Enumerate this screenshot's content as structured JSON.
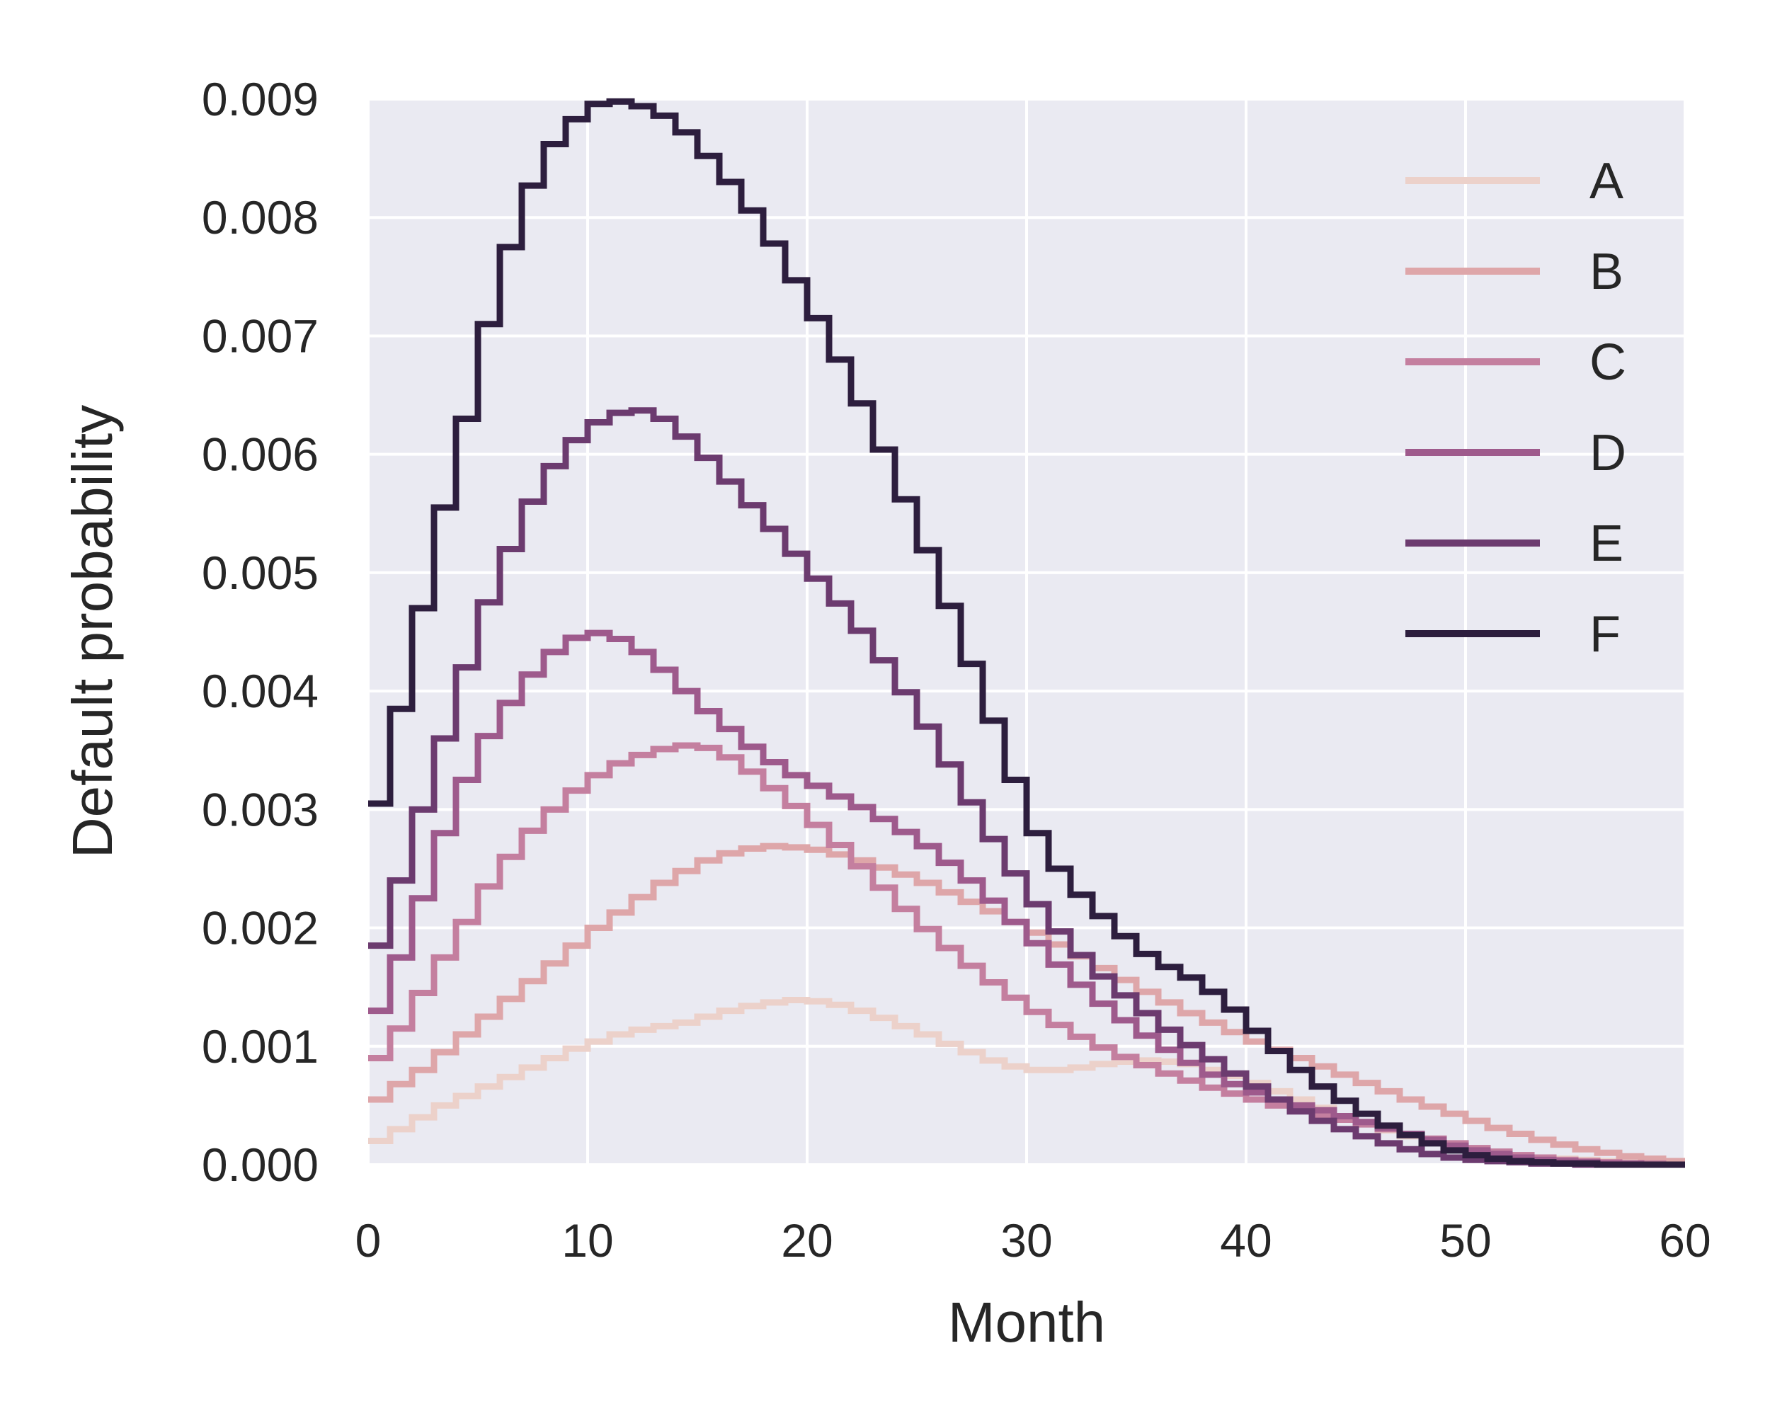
{
  "chart_data": {
    "type": "line",
    "title": "",
    "xlabel": "Month",
    "ylabel": "Default probability",
    "xlim": [
      0,
      60
    ],
    "ylim": [
      0,
      0.009
    ],
    "grid": true,
    "legend_position": "top-right",
    "x_ticks": [
      "0",
      "10",
      "20",
      "30",
      "40",
      "50",
      "60"
    ],
    "y_ticks": [
      "0.000",
      "0.001",
      "0.002",
      "0.003",
      "0.004",
      "0.005",
      "0.006",
      "0.007",
      "0.008",
      "0.009"
    ],
    "x": [
      0,
      1,
      2,
      3,
      4,
      5,
      6,
      7,
      8,
      9,
      10,
      11,
      12,
      13,
      14,
      15,
      16,
      17,
      18,
      19,
      20,
      21,
      22,
      23,
      24,
      25,
      26,
      27,
      28,
      29,
      30,
      31,
      32,
      33,
      34,
      35,
      36,
      37,
      38,
      39,
      40,
      41,
      42,
      43,
      44,
      45,
      46,
      47,
      48,
      49,
      50,
      51,
      52,
      53,
      54,
      55,
      56,
      57,
      58,
      59
    ],
    "series": [
      {
        "name": "A",
        "color": "#ecd1ca",
        "values": [
          0.0002,
          0.0003,
          0.0004,
          0.0005,
          0.00058,
          0.00066,
          0.00074,
          0.00082,
          0.0009,
          0.00098,
          0.00104,
          0.0011,
          0.00114,
          0.00117,
          0.0012,
          0.00125,
          0.0013,
          0.00134,
          0.00137,
          0.00139,
          0.00138,
          0.00135,
          0.0013,
          0.00124,
          0.00117,
          0.0011,
          0.00102,
          0.00095,
          0.00088,
          0.00083,
          0.0008,
          0.0008,
          0.00082,
          0.00085,
          0.00087,
          0.00088,
          0.00087,
          0.00085,
          0.0008,
          0.00075,
          0.00069,
          0.00062,
          0.00055,
          0.00048,
          0.00041,
          0.00035,
          0.00029,
          0.00024,
          0.0002,
          0.00016,
          0.00013,
          0.0001,
          8e-05,
          6e-05,
          5e-05,
          4e-05,
          3e-05,
          2e-05,
          2e-05,
          1e-05
        ]
      },
      {
        "name": "B",
        "color": "#dea6a9",
        "values": [
          0.00055,
          0.00068,
          0.0008,
          0.00095,
          0.0011,
          0.00125,
          0.0014,
          0.00155,
          0.0017,
          0.00185,
          0.002,
          0.00213,
          0.00226,
          0.00238,
          0.00248,
          0.00257,
          0.00263,
          0.00267,
          0.00269,
          0.00268,
          0.00266,
          0.00262,
          0.00257,
          0.00251,
          0.00245,
          0.00238,
          0.0023,
          0.00222,
          0.00214,
          0.00205,
          0.00196,
          0.00186,
          0.00176,
          0.00166,
          0.00156,
          0.00146,
          0.00137,
          0.00128,
          0.0012,
          0.00112,
          0.00104,
          0.00097,
          0.0009,
          0.00083,
          0.00076,
          0.00069,
          0.00062,
          0.00055,
          0.00049,
          0.00043,
          0.00037,
          0.00031,
          0.00026,
          0.00021,
          0.00017,
          0.00013,
          0.0001,
          7e-05,
          5e-05,
          3e-05
        ]
      },
      {
        "name": "C",
        "color": "#c47f9f",
        "values": [
          0.0009,
          0.00115,
          0.00145,
          0.00175,
          0.00205,
          0.00235,
          0.0026,
          0.00282,
          0.003,
          0.00316,
          0.00329,
          0.00339,
          0.00346,
          0.00351,
          0.00354,
          0.00352,
          0.00344,
          0.00332,
          0.00318,
          0.00303,
          0.00287,
          0.0027,
          0.00252,
          0.00234,
          0.00216,
          0.00199,
          0.00183,
          0.00168,
          0.00154,
          0.00141,
          0.00129,
          0.00118,
          0.00108,
          0.00099,
          0.00091,
          0.00084,
          0.00077,
          0.00071,
          0.00065,
          0.0006,
          0.00055,
          0.0005,
          0.00046,
          0.00042,
          0.00038,
          0.00034,
          0.0003,
          0.00026,
          0.00022,
          0.00018,
          0.00014,
          0.00011,
          8e-05,
          6e-05,
          4e-05,
          3e-05,
          2e-05,
          1e-05,
          1e-05,
          0.0
        ]
      },
      {
        "name": "D",
        "color": "#9e5a8c",
        "values": [
          0.0013,
          0.00175,
          0.00225,
          0.0028,
          0.00325,
          0.00362,
          0.0039,
          0.00414,
          0.00433,
          0.00445,
          0.00449,
          0.00444,
          0.00433,
          0.00418,
          0.004,
          0.00383,
          0.00368,
          0.00353,
          0.0034,
          0.00329,
          0.0032,
          0.00311,
          0.00302,
          0.00292,
          0.00281,
          0.00269,
          0.00255,
          0.0024,
          0.00223,
          0.00205,
          0.00187,
          0.00169,
          0.00152,
          0.00136,
          0.00122,
          0.00109,
          0.00097,
          0.00086,
          0.00076,
          0.00068,
          0.00061,
          0.00055,
          0.0005,
          0.00046,
          0.00041,
          0.00036,
          0.00031,
          0.00026,
          0.00021,
          0.00016,
          0.00012,
          9e-05,
          6e-05,
          4e-05,
          3e-05,
          2e-05,
          1e-05,
          1e-05,
          0.0,
          0.0
        ]
      },
      {
        "name": "E",
        "color": "#6c3b6f",
        "values": [
          0.00185,
          0.0024,
          0.003,
          0.0036,
          0.0042,
          0.00475,
          0.0052,
          0.0056,
          0.0059,
          0.00612,
          0.00627,
          0.00635,
          0.00637,
          0.0063,
          0.00615,
          0.00597,
          0.00577,
          0.00557,
          0.00537,
          0.00516,
          0.00495,
          0.00474,
          0.00451,
          0.00426,
          0.00399,
          0.0037,
          0.00338,
          0.00306,
          0.00275,
          0.00246,
          0.0022,
          0.00197,
          0.00177,
          0.00159,
          0.00143,
          0.00128,
          0.00114,
          0.00101,
          0.00089,
          0.00077,
          0.00066,
          0.00055,
          0.00045,
          0.00037,
          0.0003,
          0.00024,
          0.00018,
          0.00013,
          9e-05,
          6e-05,
          4e-05,
          3e-05,
          2e-05,
          1e-05,
          1e-05,
          0.0,
          0.0,
          0.0,
          0.0,
          0.0
        ]
      },
      {
        "name": "F",
        "color": "#2d1e3e",
        "values": [
          0.00305,
          0.00385,
          0.0047,
          0.00555,
          0.0063,
          0.0071,
          0.00775,
          0.00827,
          0.00862,
          0.00883,
          0.00896,
          0.00898,
          0.00894,
          0.00886,
          0.00872,
          0.00852,
          0.0083,
          0.00806,
          0.00778,
          0.00747,
          0.00715,
          0.0068,
          0.00643,
          0.00604,
          0.00562,
          0.00519,
          0.00472,
          0.00423,
          0.00375,
          0.00325,
          0.0028,
          0.0025,
          0.00228,
          0.0021,
          0.00193,
          0.00178,
          0.00167,
          0.00158,
          0.00146,
          0.00131,
          0.00113,
          0.00096,
          0.0008,
          0.00066,
          0.00054,
          0.00043,
          0.00033,
          0.00025,
          0.00018,
          0.00012,
          8e-05,
          5e-05,
          3e-05,
          2e-05,
          1e-05,
          1e-05,
          0.0,
          0.0,
          0.0,
          0.0
        ]
      }
    ]
  }
}
